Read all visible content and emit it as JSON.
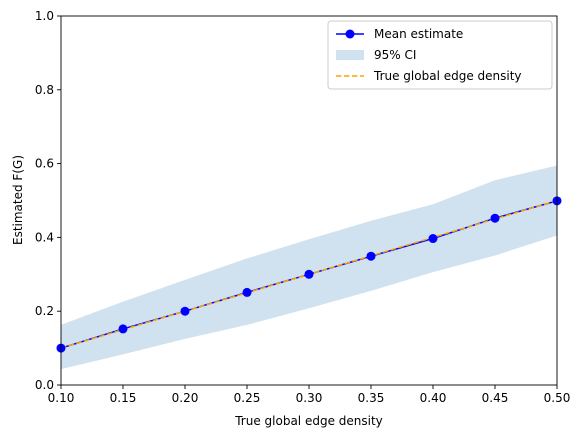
{
  "chart_data": {
    "type": "line",
    "xlabel": "True global edge density",
    "ylabel": "Estimated F(G)",
    "xlim": [
      0.1,
      0.5
    ],
    "ylim": [
      0.0,
      1.0
    ],
    "x_ticks": [
      "0.10",
      "0.15",
      "0.20",
      "0.25",
      "0.30",
      "0.35",
      "0.40",
      "0.45",
      "0.50"
    ],
    "y_ticks": [
      "0.0",
      "0.2",
      "0.4",
      "0.6",
      "0.8",
      "1.0"
    ],
    "grid": false,
    "legend_position": "top-right",
    "x": [
      0.1,
      0.15,
      0.2,
      0.25,
      0.3,
      0.35,
      0.4,
      0.45,
      0.5
    ],
    "series": [
      {
        "name": "Mean estimate",
        "kind": "line-marker",
        "color": "#0000ff",
        "values": [
          0.1,
          0.152,
          0.2,
          0.251,
          0.3,
          0.349,
          0.397,
          0.452,
          0.499
        ]
      },
      {
        "name": "95% CI",
        "kind": "band",
        "color": "#a9cbe2",
        "lower": [
          0.043,
          0.083,
          0.125,
          0.163,
          0.208,
          0.255,
          0.306,
          0.351,
          0.405
        ],
        "upper": [
          0.163,
          0.226,
          0.285,
          0.343,
          0.395,
          0.445,
          0.49,
          0.555,
          0.595
        ]
      },
      {
        "name": "True global edge density",
        "kind": "dashed-line",
        "color": "#ffa500",
        "values": [
          0.1,
          0.15,
          0.2,
          0.25,
          0.3,
          0.35,
          0.4,
          0.45,
          0.5
        ]
      }
    ]
  }
}
